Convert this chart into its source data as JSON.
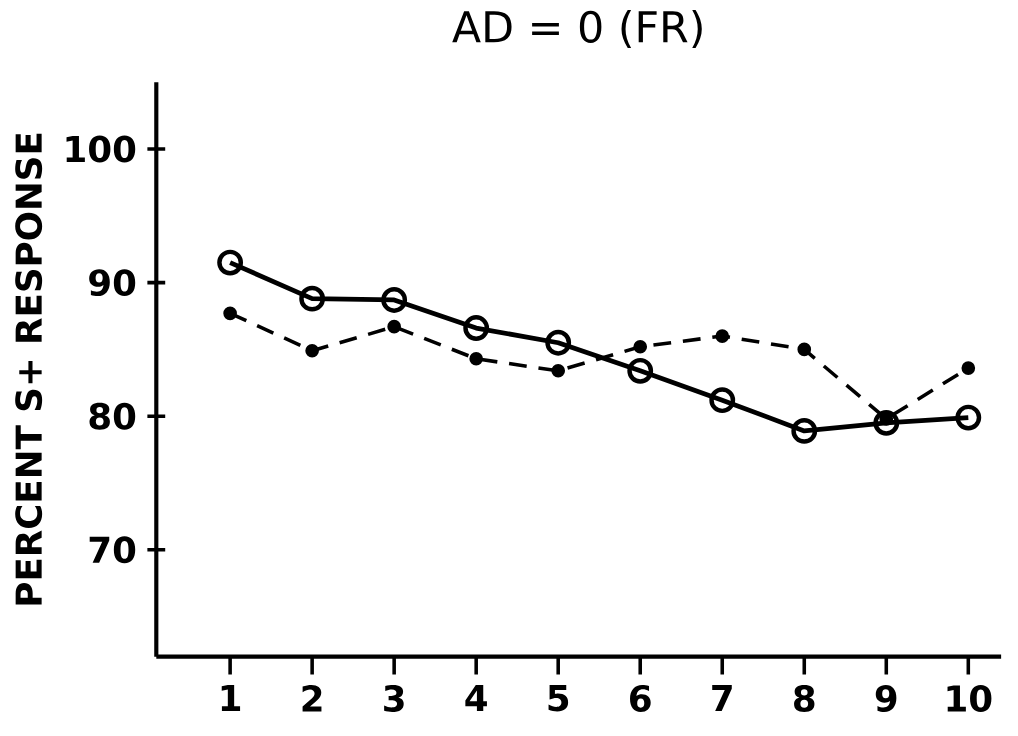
{
  "chart_data": {
    "type": "line",
    "title": "AD = 0 (FR)",
    "ylabel": "PERCENT S+ RESPONSE",
    "x": [
      1,
      2,
      3,
      4,
      5,
      6,
      7,
      8,
      9,
      10
    ],
    "series": [
      {
        "color": "#000000",
        "marker": "circle",
        "line_style": "solid",
        "values": [
          91.5,
          88.8,
          88.7,
          86.6,
          85.5,
          83.4,
          81.2,
          78.9,
          79.5,
          79.9
        ]
      },
      {
        "color": "#000000",
        "marker": "dot",
        "line_style": "dashed",
        "values": [
          87.7,
          84.9,
          86.7,
          84.3,
          83.4,
          85.2,
          86.0,
          85.0,
          79.8,
          83.6
        ]
      }
    ],
    "xlim": [
      0.1,
      10.4
    ],
    "ylim": [
      62,
      105
    ],
    "xticks": [
      1,
      2,
      3,
      4,
      5,
      6,
      7,
      8,
      9,
      10
    ],
    "yticks": [
      70,
      80,
      90,
      100
    ],
    "grid": false
  }
}
